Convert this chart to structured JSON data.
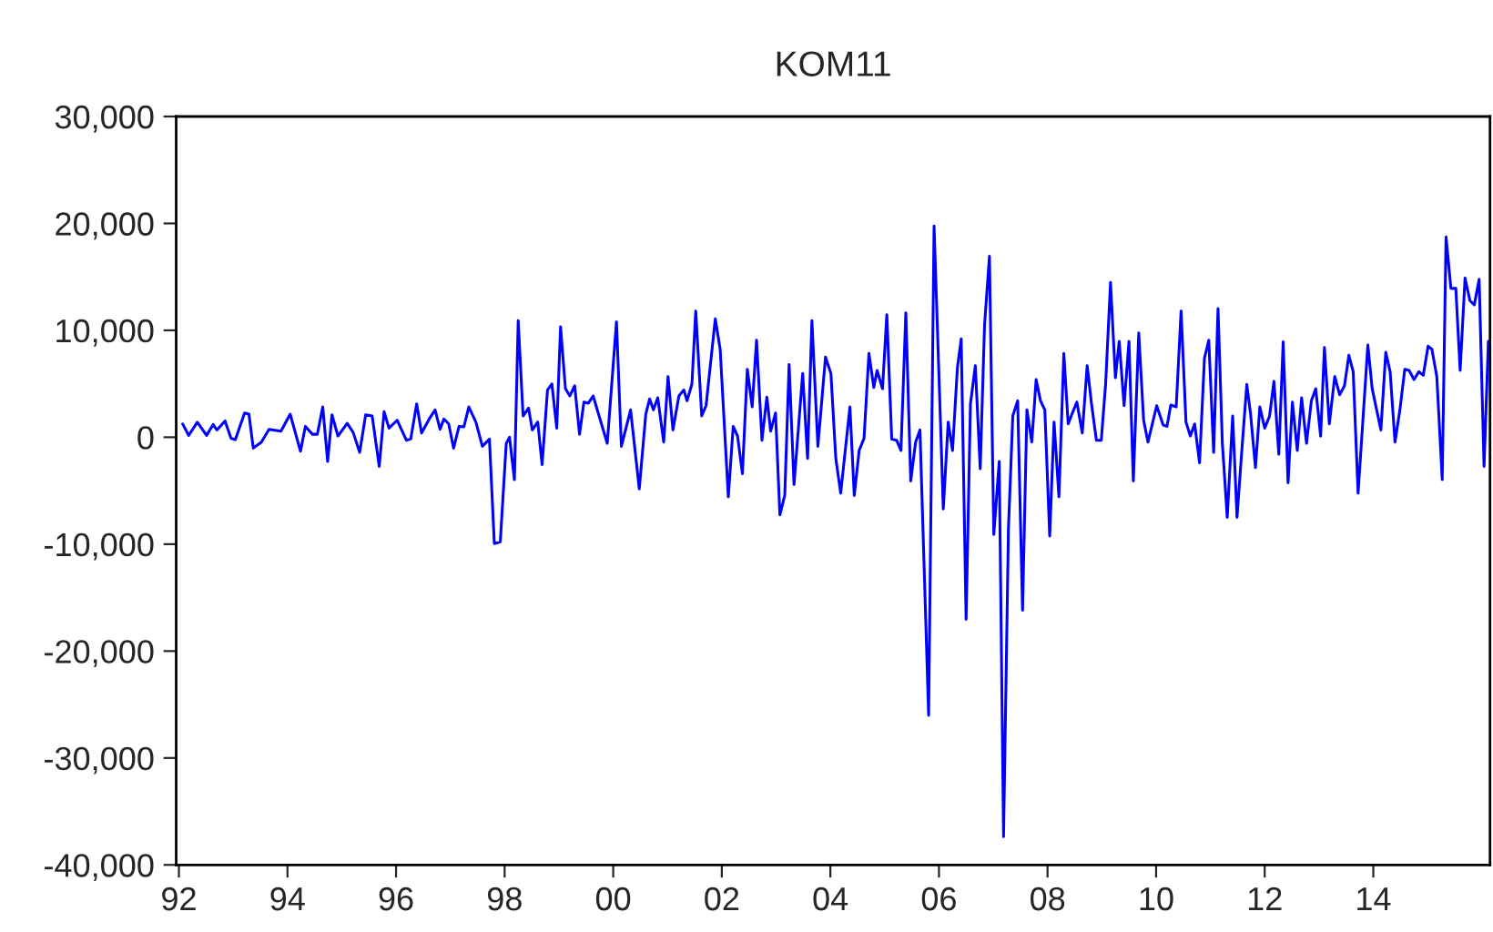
{
  "chart_data": {
    "type": "line",
    "title": "KOM11",
    "x": [
      1992.07,
      1992.18,
      1992.34,
      1992.51,
      1992.63,
      1992.7,
      1992.85,
      1992.96,
      1993.04,
      1993.21,
      1993.29,
      1993.37,
      1993.52,
      1993.66,
      1993.88,
      1994.05,
      1994.24,
      1994.33,
      1994.46,
      1994.55,
      1994.65,
      1994.74,
      1994.82,
      1994.93,
      1995.1,
      1995.21,
      1995.33,
      1995.44,
      1995.56,
      1995.69,
      1995.78,
      1995.87,
      1996.02,
      1996.19,
      1996.27,
      1996.38,
      1996.47,
      1996.61,
      1996.72,
      1996.81,
      1996.88,
      1996.97,
      1997.06,
      1997.16,
      1997.25,
      1997.34,
      1997.47,
      1997.59,
      1997.72,
      1997.81,
      1997.92,
      1998.03,
      1998.09,
      1998.18,
      1998.25,
      1998.34,
      1998.44,
      1998.51,
      1998.61,
      1998.69,
      1998.79,
      1998.87,
      1998.96,
      1999.03,
      1999.12,
      1999.2,
      1999.29,
      1999.38,
      1999.46,
      1999.54,
      1999.63,
      1999.73,
      1999.89,
      2000.06,
      2000.15,
      2000.32,
      2000.48,
      2000.6,
      2000.67,
      2000.74,
      2000.82,
      2000.93,
      2001.01,
      2001.1,
      2001.21,
      2001.3,
      2001.36,
      2001.45,
      2001.52,
      2001.63,
      2001.71,
      2001.88,
      2001.97,
      2002.12,
      2002.21,
      2002.29,
      2002.38,
      2002.47,
      2002.56,
      2002.64,
      2002.74,
      2002.83,
      2002.9,
      2002.99,
      2003.07,
      2003.16,
      2003.24,
      2003.33,
      2003.49,
      2003.58,
      2003.66,
      2003.77,
      2003.91,
      2004.01,
      2004.1,
      2004.19,
      2004.36,
      2004.44,
      2004.53,
      2004.62,
      2004.71,
      2004.8,
      2004.86,
      2004.96,
      2005.04,
      2005.13,
      2005.22,
      2005.3,
      2005.39,
      2005.48,
      2005.57,
      2005.65,
      2005.81,
      2005.91,
      2006.08,
      2006.17,
      2006.25,
      2006.34,
      2006.41,
      2006.5,
      2006.58,
      2006.67,
      2006.76,
      2006.84,
      2006.93,
      2007.01,
      2007.11,
      2007.19,
      2007.28,
      2007.36,
      2007.45,
      2007.54,
      2007.62,
      2007.71,
      2007.79,
      2007.87,
      2007.95,
      2008.04,
      2008.12,
      2008.21,
      2008.3,
      2008.38,
      2008.45,
      2008.54,
      2008.64,
      2008.73,
      2008.81,
      2008.9,
      2008.99,
      2009.07,
      2009.16,
      2009.25,
      2009.32,
      2009.41,
      2009.5,
      2009.58,
      2009.68,
      2009.77,
      2009.85,
      2010.01,
      2010.13,
      2010.2,
      2010.27,
      2010.37,
      2010.46,
      2010.55,
      2010.63,
      2010.71,
      2010.8,
      2010.89,
      2010.97,
      2011.06,
      2011.14,
      2011.22,
      2011.31,
      2011.41,
      2011.49,
      2011.58,
      2011.67,
      2011.74,
      2011.83,
      2011.91,
      2012.0,
      2012.09,
      2012.17,
      2012.26,
      2012.34,
      2012.43,
      2012.51,
      2012.6,
      2012.68,
      2012.77,
      2012.86,
      2012.94,
      2013.03,
      2013.1,
      2013.19,
      2013.29,
      2013.38,
      2013.47,
      2013.55,
      2013.63,
      2013.72,
      2013.9,
      2013.98,
      2014.14,
      2014.23,
      2014.31,
      2014.4,
      2014.49,
      2014.58,
      2014.66,
      2014.75,
      2014.84,
      2014.92,
      2015.01,
      2015.08,
      2015.17,
      2015.27,
      2015.34,
      2015.43,
      2015.52,
      2015.6,
      2015.69,
      2015.78,
      2015.86,
      2015.95,
      2016.04,
      2016.12
    ],
    "series": [
      {
        "color": "#0000ff",
        "values": [
          1240,
          170,
          1400,
          170,
          1190,
          680,
          1530,
          -100,
          -230,
          2270,
          2160,
          -1020,
          -450,
          740,
          570,
          2160,
          -1310,
          1020,
          280,
          280,
          2840,
          -2270,
          2100,
          110,
          1300,
          450,
          -1420,
          2100,
          1990,
          -2730,
          2390,
          850,
          1590,
          -280,
          -170,
          3120,
          400,
          1700,
          2560,
          740,
          1700,
          1250,
          -1020,
          1020,
          970,
          2840,
          1420,
          -850,
          -170,
          -9940,
          -9770,
          -570,
          0,
          -3970,
          10900,
          1990,
          2730,
          680,
          1420,
          -2560,
          4430,
          4990,
          850,
          10340,
          4540,
          3860,
          4820,
          280,
          3290,
          3180,
          3860,
          2160,
          -570,
          10790,
          -850,
          2560,
          -4830,
          2160,
          3580,
          2560,
          3690,
          -450,
          5680,
          680,
          3860,
          4430,
          3410,
          4990,
          11810,
          1990,
          2950,
          11070,
          8230,
          -5570,
          1020,
          110,
          -3410,
          6360,
          2840,
          9080,
          -280,
          3750,
          570,
          2270,
          -7270,
          -5400,
          6810,
          -4430,
          5960,
          -1990,
          10900,
          -850,
          7500,
          5960,
          -1990,
          -5230,
          2840,
          -5450,
          -1240,
          -110,
          7840,
          4650,
          6250,
          4540,
          11470,
          -170,
          -280,
          -1240,
          11640,
          -4090,
          -450,
          680,
          -26010,
          19760,
          -6700,
          1420,
          -1240,
          6530,
          9200,
          -17040,
          3120,
          6700,
          -2950,
          10510,
          16920,
          -9090,
          -2270,
          -37360,
          -8520,
          1990,
          3410,
          -16180,
          2560,
          -450,
          5400,
          3410,
          2560,
          -9250,
          1420,
          -5570,
          7840,
          1250,
          2160,
          3290,
          400,
          6700,
          3120,
          -280,
          -280,
          4990,
          14480,
          5570,
          8980,
          2950,
          8980,
          -4090,
          9760,
          1590,
          -450,
          2950,
          1140,
          1020,
          3010,
          2840,
          11810,
          1420,
          110,
          1250,
          -2390,
          7380,
          9080,
          -1420,
          12040,
          -570,
          -7500,
          1990,
          -7500,
          -1140,
          4940,
          2160,
          -2840,
          2840,
          850,
          1990,
          5230,
          -1590,
          8920,
          -4260,
          3290,
          -1240,
          3690,
          -570,
          3410,
          4540,
          110,
          8400,
          1250,
          5680,
          3980,
          4820,
          7670,
          6130,
          -5230,
          8630,
          4540,
          680,
          7950,
          6130,
          -450,
          2560,
          6360,
          6250,
          5400,
          6130,
          5790,
          8520,
          8230,
          5680,
          -3970,
          18740,
          13920,
          13920,
          6250,
          14880,
          12780,
          12380,
          14770,
          -2730,
          8980
        ]
      }
    ],
    "xlim": [
      1991.95,
      2016.15
    ],
    "xticks": [
      {
        "value": 1992,
        "label": "92"
      },
      {
        "value": 1994,
        "label": "94"
      },
      {
        "value": 1996,
        "label": "96"
      },
      {
        "value": 1998,
        "label": "98"
      },
      {
        "value": 2000,
        "label": "00"
      },
      {
        "value": 2002,
        "label": "02"
      },
      {
        "value": 2004,
        "label": "04"
      },
      {
        "value": 2006,
        "label": "06"
      },
      {
        "value": 2008,
        "label": "08"
      },
      {
        "value": 2010,
        "label": "10"
      },
      {
        "value": 2012,
        "label": "12"
      },
      {
        "value": 2014,
        "label": "14"
      }
    ],
    "ylim": [
      -40000,
      30000
    ],
    "yticks": [
      {
        "value": -40000,
        "label": "-40,000"
      },
      {
        "value": -30000,
        "label": "-30,000"
      },
      {
        "value": -20000,
        "label": "-20,000"
      },
      {
        "value": -10000,
        "label": "-10,000"
      },
      {
        "value": 0,
        "label": "0"
      },
      {
        "value": 10000,
        "label": "10,000"
      },
      {
        "value": 20000,
        "label": "20,000"
      },
      {
        "value": 30000,
        "label": "30,000"
      }
    ],
    "grid": false,
    "legend": false,
    "marker": "none",
    "line_style": "solid"
  }
}
